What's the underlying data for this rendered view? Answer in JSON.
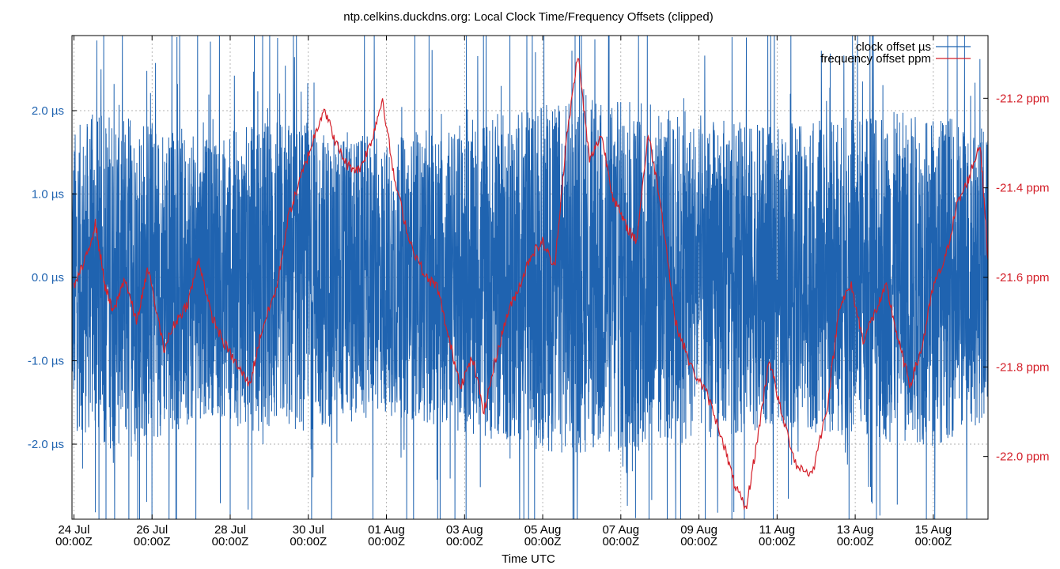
{
  "chart_data": {
    "type": "line",
    "title": "ntp.celkins.duckdns.org: Local Clock Time/Frequency Offsets (clipped)",
    "xlabel": "Time UTC",
    "ylabel_left": "",
    "ylabel_right": "",
    "x_ticks": [
      {
        "date": "24 Jul",
        "time": "00:00Z",
        "day": 0
      },
      {
        "date": "26 Jul",
        "time": "00:00Z",
        "day": 2
      },
      {
        "date": "28 Jul",
        "time": "00:00Z",
        "day": 4
      },
      {
        "date": "30 Jul",
        "time": "00:00Z",
        "day": 6
      },
      {
        "date": "01 Aug",
        "time": "00:00Z",
        "day": 8
      },
      {
        "date": "03 Aug",
        "time": "00:00Z",
        "day": 10
      },
      {
        "date": "05 Aug",
        "time": "00:00Z",
        "day": 12
      },
      {
        "date": "07 Aug",
        "time": "00:00Z",
        "day": 14
      },
      {
        "date": "09 Aug",
        "time": "00:00Z",
        "day": 16
      },
      {
        "date": "11 Aug",
        "time": "00:00Z",
        "day": 18
      },
      {
        "date": "13 Aug",
        "time": "00:00Z",
        "day": 20
      },
      {
        "date": "15 Aug",
        "time": "00:00Z",
        "day": 22
      }
    ],
    "xlim_days": [
      -0.05,
      23.4
    ],
    "y_left": {
      "unit": "µs",
      "range": [
        -2.9,
        2.9
      ],
      "ticks": [
        {
          "value": 2.0,
          "label": "2.0 µs"
        },
        {
          "value": 1.0,
          "label": "1.0 µs"
        },
        {
          "value": 0.0,
          "label": "0.0 µs"
        },
        {
          "value": -1.0,
          "label": "-1.0 µs"
        },
        {
          "value": -2.0,
          "label": "-2.0 µs"
        }
      ]
    },
    "y_right": {
      "unit": "ppm",
      "range": [
        -22.14,
        -21.06
      ],
      "ticks": [
        {
          "value": -21.2,
          "label": "-21.2 ppm"
        },
        {
          "value": -21.4,
          "label": "-21.4 ppm"
        },
        {
          "value": -21.6,
          "label": "-21.6 ppm"
        },
        {
          "value": -21.8,
          "label": "-21.8 ppm"
        },
        {
          "value": -22.0,
          "label": "-22.0 ppm"
        }
      ]
    },
    "grid": true,
    "legend_position": "top-right",
    "series": [
      {
        "name": "clock offset µs",
        "axis": "left",
        "color": "#1f63b0",
        "note_envelope_amplitude": [
          {
            "day": 0.0,
            "amp": 2.4
          },
          {
            "day": 1.0,
            "amp": 2.8
          },
          {
            "day": 2.0,
            "amp": 2.6
          },
          {
            "day": 3.5,
            "amp": 2.2
          },
          {
            "day": 5.0,
            "amp": 2.6
          },
          {
            "day": 6.5,
            "amp": 2.4
          },
          {
            "day": 8.0,
            "amp": 2.2
          },
          {
            "day": 10.0,
            "amp": 2.5
          },
          {
            "day": 12.0,
            "amp": 2.8
          },
          {
            "day": 14.0,
            "amp": 2.9
          },
          {
            "day": 16.0,
            "amp": 2.6
          },
          {
            "day": 18.0,
            "amp": 2.4
          },
          {
            "day": 20.0,
            "amp": 2.6
          },
          {
            "day": 22.0,
            "amp": 2.7
          },
          {
            "day": 23.4,
            "amp": 2.3
          }
        ]
      },
      {
        "name": "frequency offset ppm",
        "axis": "right",
        "color": "#d4202a",
        "points": [
          [
            0.0,
            -21.62
          ],
          [
            0.3,
            -21.56
          ],
          [
            0.55,
            -21.48
          ],
          [
            0.8,
            -21.62
          ],
          [
            1.0,
            -21.68
          ],
          [
            1.3,
            -21.6
          ],
          [
            1.6,
            -21.7
          ],
          [
            1.9,
            -21.58
          ],
          [
            2.3,
            -21.76
          ],
          [
            2.6,
            -21.7
          ],
          [
            2.9,
            -21.66
          ],
          [
            3.2,
            -21.56
          ],
          [
            3.5,
            -21.68
          ],
          [
            3.8,
            -21.74
          ],
          [
            4.2,
            -21.8
          ],
          [
            4.5,
            -21.84
          ],
          [
            4.8,
            -21.72
          ],
          [
            5.2,
            -21.62
          ],
          [
            5.5,
            -21.46
          ],
          [
            5.8,
            -21.38
          ],
          [
            6.1,
            -21.3
          ],
          [
            6.4,
            -21.22
          ],
          [
            6.7,
            -21.3
          ],
          [
            7.0,
            -21.35
          ],
          [
            7.3,
            -21.36
          ],
          [
            7.6,
            -21.3
          ],
          [
            7.9,
            -21.2
          ],
          [
            8.2,
            -21.38
          ],
          [
            8.6,
            -21.52
          ],
          [
            9.0,
            -21.6
          ],
          [
            9.3,
            -21.62
          ],
          [
            9.6,
            -21.74
          ],
          [
            9.9,
            -21.84
          ],
          [
            10.2,
            -21.78
          ],
          [
            10.5,
            -21.9
          ],
          [
            10.8,
            -21.78
          ],
          [
            11.1,
            -21.68
          ],
          [
            11.4,
            -21.62
          ],
          [
            11.7,
            -21.55
          ],
          [
            12.0,
            -21.52
          ],
          [
            12.3,
            -21.58
          ],
          [
            12.6,
            -21.3
          ],
          [
            12.9,
            -21.1
          ],
          [
            13.2,
            -21.34
          ],
          [
            13.5,
            -21.28
          ],
          [
            13.8,
            -21.42
          ],
          [
            14.1,
            -21.48
          ],
          [
            14.4,
            -21.52
          ],
          [
            14.7,
            -21.28
          ],
          [
            15.0,
            -21.42
          ],
          [
            15.4,
            -21.7
          ],
          [
            15.8,
            -21.8
          ],
          [
            16.2,
            -21.86
          ],
          [
            16.6,
            -21.96
          ],
          [
            16.9,
            -22.06
          ],
          [
            17.2,
            -22.12
          ],
          [
            17.5,
            -21.96
          ],
          [
            17.8,
            -21.78
          ],
          [
            18.1,
            -21.9
          ],
          [
            18.5,
            -22.02
          ],
          [
            18.9,
            -22.04
          ],
          [
            19.3,
            -21.88
          ],
          [
            19.6,
            -21.66
          ],
          [
            19.9,
            -21.62
          ],
          [
            20.2,
            -21.74
          ],
          [
            20.5,
            -21.68
          ],
          [
            20.8,
            -21.62
          ],
          [
            21.1,
            -21.74
          ],
          [
            21.4,
            -21.84
          ],
          [
            21.7,
            -21.76
          ],
          [
            22.0,
            -21.62
          ],
          [
            22.3,
            -21.56
          ],
          [
            22.6,
            -21.44
          ],
          [
            22.9,
            -21.38
          ],
          [
            23.2,
            -21.3
          ],
          [
            23.4,
            -21.56
          ]
        ]
      }
    ]
  }
}
